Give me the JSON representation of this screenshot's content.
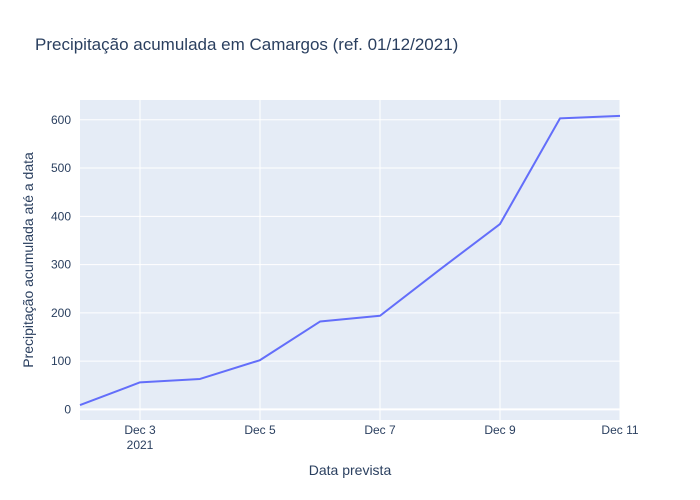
{
  "chart_data": {
    "type": "line",
    "title": "Precipitação acumulada em Camargos (ref. 01/12/2021)",
    "xlabel": "Data prevista",
    "ylabel": "Precipitação acumulada até a data",
    "x": [
      "2021-12-02",
      "2021-12-03",
      "2021-12-04",
      "2021-12-05",
      "2021-12-06",
      "2021-12-07",
      "2021-12-08",
      "2021-12-09",
      "2021-12-10",
      "2021-12-11"
    ],
    "series": [
      {
        "values": [
          9,
          56,
          63,
          102,
          182,
          194,
          290,
          384,
          603,
          608
        ]
      }
    ],
    "xlim": [
      "2021-12-02",
      "2021-12-11"
    ],
    "ylim": [
      -22,
      641
    ],
    "x_ticks": [
      {
        "x": "2021-12-03",
        "label": "Dec 3",
        "sublabel": "2021"
      },
      {
        "x": "2021-12-05",
        "label": "Dec 5",
        "sublabel": ""
      },
      {
        "x": "2021-12-07",
        "label": "Dec 7",
        "sublabel": ""
      },
      {
        "x": "2021-12-09",
        "label": "Dec 9",
        "sublabel": ""
      },
      {
        "x": "2021-12-11",
        "label": "Dec 11",
        "sublabel": ""
      }
    ],
    "y_ticks": [
      0,
      100,
      200,
      300,
      400,
      500,
      600
    ],
    "grid": true,
    "line_color": "#636efa",
    "plot_bg": "#e5ecf6"
  }
}
